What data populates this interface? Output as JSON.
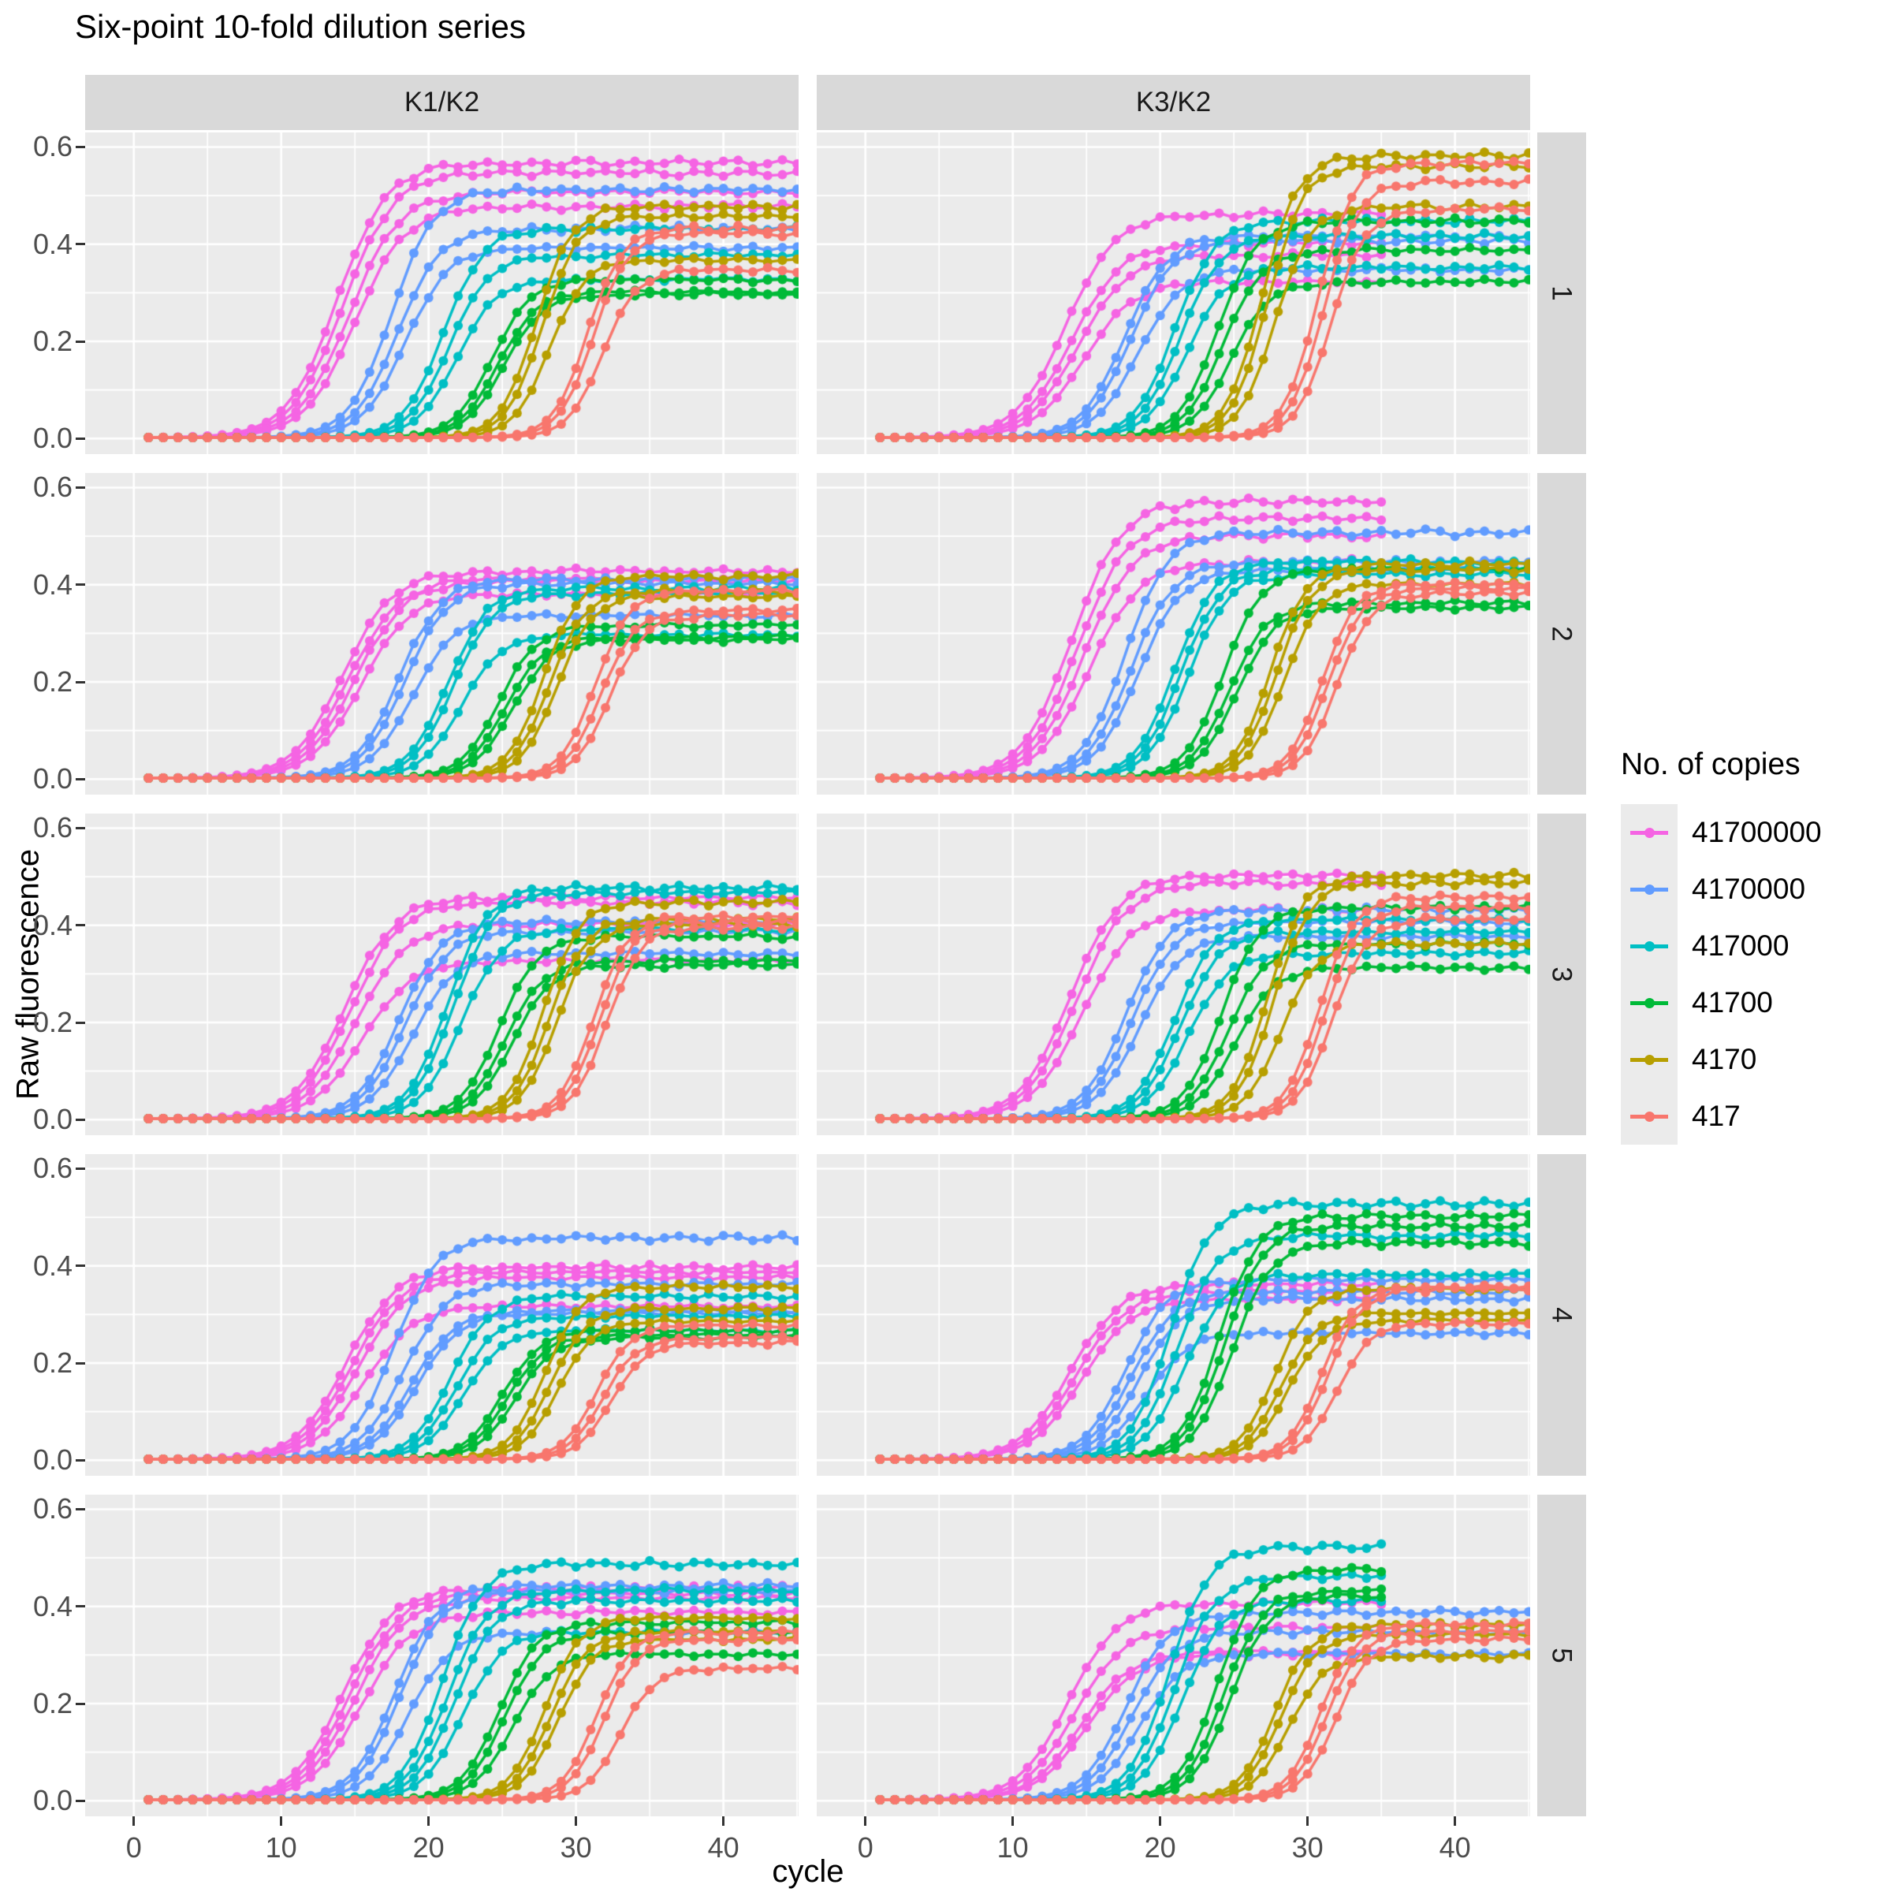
{
  "title": "Six-point 10-fold dilution series",
  "chart_data": {
    "type": "line",
    "title": "Six-point 10-fold dilution series",
    "xlabel": "cycle",
    "ylabel": "Raw fluorescence",
    "legend_title": "No. of copies",
    "legend_position": "right",
    "grid": "on",
    "background": "#EBEBEB",
    "strip_background": "#D9D9D9",
    "x_range": [
      1,
      45
    ],
    "x_ticks": [
      0,
      10,
      20,
      30,
      40
    ],
    "y_ticks": [
      0.0,
      0.2,
      0.4,
      0.6
    ],
    "x_minor": [
      5,
      15,
      25,
      35,
      45
    ],
    "y_minor": [
      0.1,
      0.3,
      0.5
    ],
    "xlim": [
      -3.3,
      45.1
    ],
    "ylim": [
      -0.032,
      0.63
    ],
    "facet_cols": [
      "K1/K2",
      "K3/K2"
    ],
    "facet_rows": [
      "1",
      "2",
      "3",
      "4",
      "5"
    ],
    "series_levels": [
      {
        "label": "41700000",
        "color": "#F564E3"
      },
      {
        "label": "4170000",
        "color": "#619CFF"
      },
      {
        "label": "417000",
        "color": "#00BFC4"
      },
      {
        "label": "41700",
        "color": "#00BA38"
      },
      {
        "label": "4170",
        "color": "#B79F00"
      },
      {
        "label": "417",
        "color": "#F8766D"
      }
    ],
    "slopes": {
      "41700000": 1.7,
      "4170000": 1.45,
      "417000": 1.35,
      "41700": 1.3,
      "4170": 1.2,
      "417": 1.15
    },
    "baseline": 0.002,
    "model": "Raw fluorescence(cycle) = 0.002 + plateau/(1+exp(-(cycle-midpoint)/slope)); one sigmoid per replicate, cycles 1..end (end=45 unless noted 35)",
    "panels": [
      {
        "row": "1",
        "col": "K1/K2",
        "curves": {
          "41700000": {
            "mid": [
              13.8,
              14.2,
              14.6,
              15.0
            ],
            "plateau": [
              0.565,
              0.545,
              0.505,
              0.475
            ],
            "end": 45
          },
          "4170000": {
            "mid": [
              17.5,
              17.9,
              18.4
            ],
            "plateau": [
              0.51,
              0.43,
              0.39
            ],
            "end": 45
          },
          "417000": {
            "mid": [
              21.0,
              21.4,
              21.9
            ],
            "plateau": [
              0.43,
              0.375,
              0.325
            ],
            "end": 45
          },
          "41700": {
            "mid": [
              24.3,
              24.7,
              25.1
            ],
            "plateau": [
              0.325,
              0.3,
              0.295
            ],
            "end": 45
          },
          "4170": {
            "mid": [
              27.3,
              27.7,
              28.2
            ],
            "plateau": [
              0.475,
              0.455,
              0.365
            ],
            "end": 45
          },
          "417": {
            "mid": [
              30.8,
              31.2,
              31.8
            ],
            "plateau": [
              0.43,
              0.42,
              0.345
            ],
            "end": 45
          }
        }
      },
      {
        "row": "1",
        "col": "K3/K2",
        "curves": {
          "41700000": {
            "mid": [
              13.6,
              14.0,
              14.4,
              14.8
            ],
            "plateau": [
              0.46,
              0.4,
              0.375,
              0.32
            ],
            "end": 35
          },
          "4170000": {
            "mid": [
              17.6,
              18.0,
              18.5
            ],
            "plateau": [
              0.415,
              0.405,
              0.345
            ],
            "end": 45
          },
          "417000": {
            "mid": [
              21.0,
              21.4,
              21.8
            ],
            "plateau": [
              0.445,
              0.415,
              0.35
            ],
            "end": 45
          },
          "41700": {
            "mid": [
              23.9,
              24.3,
              24.8
            ],
            "plateau": [
              0.445,
              0.385,
              0.32
            ],
            "end": 45
          },
          "4170": {
            "mid": [
              26.9,
              27.3,
              27.8
            ],
            "plateau": [
              0.58,
              0.56,
              0.475
            ],
            "end": 45
          },
          "417": {
            "mid": [
              30.7,
              31.1,
              31.6
            ],
            "plateau": [
              0.565,
              0.525,
              0.47
            ],
            "end": 45
          }
        }
      },
      {
        "row": "2",
        "col": "K1/K2",
        "curves": {
          "41700000": {
            "mid": [
              14.2,
              14.6,
              15.0,
              15.4
            ],
            "plateau": [
              0.425,
              0.41,
              0.405,
              0.38
            ],
            "end": 45
          },
          "4170000": {
            "mid": [
              18.0,
              18.4,
              18.9
            ],
            "plateau": [
              0.41,
              0.4,
              0.335
            ],
            "end": 45
          },
          "417000": {
            "mid": [
              21.3,
              21.7,
              22.2
            ],
            "plateau": [
              0.39,
              0.38,
              0.295
            ],
            "end": 45
          },
          "41700": {
            "mid": [
              24.8,
              25.2,
              25.7
            ],
            "plateau": [
              0.315,
              0.29,
              0.285
            ],
            "end": 45
          },
          "4170": {
            "mid": [
              27.8,
              28.2,
              28.7
            ],
            "plateau": [
              0.415,
              0.385,
              0.375
            ],
            "end": 45
          },
          "417": {
            "mid": [
              31.3,
              31.7,
              32.3
            ],
            "plateau": [
              0.385,
              0.345,
              0.335
            ],
            "end": 45
          }
        }
      },
      {
        "row": "2",
        "col": "K3/K2",
        "curves": {
          "41700000": {
            "mid": [
              14.0,
              14.4,
              14.8,
              15.2
            ],
            "plateau": [
              0.57,
              0.535,
              0.5,
              0.445
            ],
            "end": 35
          },
          "4170000": {
            "mid": [
              17.6,
              18.0,
              18.5
            ],
            "plateau": [
              0.505,
              0.445,
              0.43
            ],
            "end": 45
          },
          "417000": {
            "mid": [
              21.0,
              21.4,
              21.9
            ],
            "plateau": [
              0.445,
              0.43,
              0.42
            ],
            "end": 45
          },
          "41700": {
            "mid": [
              24.3,
              24.7,
              25.2
            ],
            "plateau": [
              0.43,
              0.36,
              0.35
            ],
            "end": 45
          },
          "4170": {
            "mid": [
              27.5,
              27.9,
              28.4
            ],
            "plateau": [
              0.44,
              0.43,
              0.4
            ],
            "end": 45
          },
          "417": {
            "mid": [
              31.0,
              31.4,
              32.0
            ],
            "plateau": [
              0.4,
              0.39,
              0.38
            ],
            "end": 45
          }
        }
      },
      {
        "row": "3",
        "col": "K1/K2",
        "curves": {
          "41700000": {
            "mid": [
              14.3,
              14.7,
              15.1,
              15.5
            ],
            "plateau": [
              0.455,
              0.445,
              0.4,
              0.325
            ],
            "end": 45
          },
          "4170000": {
            "mid": [
              18.0,
              18.4,
              18.9
            ],
            "plateau": [
              0.405,
              0.385,
              0.34
            ],
            "end": 45
          },
          "417000": {
            "mid": [
              21.3,
              21.7,
              22.2
            ],
            "plateau": [
              0.475,
              0.465,
              0.39
            ],
            "end": 45
          },
          "41700": {
            "mid": [
              24.8,
              25.2,
              25.7
            ],
            "plateau": [
              0.375,
              0.325,
              0.315
            ],
            "end": 45
          },
          "4170": {
            "mid": [
              27.8,
              28.2,
              28.7
            ],
            "plateau": [
              0.445,
              0.41,
              0.4
            ],
            "end": 45
          },
          "417": {
            "mid": [
              31.2,
              31.6,
              32.1
            ],
            "plateau": [
              0.415,
              0.405,
              0.395
            ],
            "end": 45
          }
        }
      },
      {
        "row": "3",
        "col": "K3/K2",
        "curves": {
          "41700000": {
            "mid": [
              13.9,
              14.3,
              14.7
            ],
            "plateau": [
              0.5,
              0.485,
              0.43
            ],
            "end": 35
          },
          "4170000": {
            "mid": [
              17.7,
              18.1,
              18.6
            ],
            "plateau": [
              0.43,
              0.405,
              0.375
            ],
            "end": 45
          },
          "417000": {
            "mid": [
              21.0,
              21.4,
              21.9
            ],
            "plateau": [
              0.41,
              0.385,
              0.34
            ],
            "end": 45
          },
          "41700": {
            "mid": [
              24.2,
              24.6,
              25.1
            ],
            "plateau": [
              0.435,
              0.36,
              0.31
            ],
            "end": 45
          },
          "4170": {
            "mid": [
              27.3,
              27.7,
              28.2
            ],
            "plateau": [
              0.5,
              0.485,
              0.36
            ],
            "end": 45
          },
          "417": {
            "mid": [
              30.8,
              31.2,
              31.7
            ],
            "plateau": [
              0.455,
              0.435,
              0.41
            ],
            "end": 45
          }
        }
      },
      {
        "row": "4",
        "col": "K1/K2",
        "curves": {
          "41700000": {
            "mid": [
              14.4,
              14.8,
              15.2,
              15.6
            ],
            "plateau": [
              0.395,
              0.385,
              0.375,
              0.315
            ],
            "end": 45
          },
          "4170000": {
            "mid": [
              17.6,
              18.3,
              18.8,
              19.2
            ],
            "plateau": [
              0.455,
              0.36,
              0.305,
              0.3
            ],
            "end": 45
          },
          "417000": {
            "mid": [
              21.5,
              21.9,
              22.4
            ],
            "plateau": [
              0.335,
              0.295,
              0.265
            ],
            "end": 45
          },
          "41700": {
            "mid": [
              25.0,
              25.4,
              25.9
            ],
            "plateau": [
              0.265,
              0.255,
              0.25
            ],
            "end": 45
          },
          "4170": {
            "mid": [
              27.9,
              28.3,
              28.8
            ],
            "plateau": [
              0.355,
              0.31,
              0.285
            ],
            "end": 45
          },
          "417": {
            "mid": [
              31.4,
              31.8,
              32.4
            ],
            "plateau": [
              0.275,
              0.25,
              0.24
            ],
            "end": 45
          }
        }
      },
      {
        "row": "4",
        "col": "K3/K2",
        "curves": {
          "41700000": {
            "mid": [
              13.9,
              14.3,
              14.7
            ],
            "plateau": [
              0.36,
              0.345,
              0.33
            ],
            "end": 35
          },
          "4170000": {
            "mid": [
              17.7,
              18.1,
              18.6,
              19.0
            ],
            "plateau": [
              0.37,
              0.345,
              0.33,
              0.26
            ],
            "end": 45
          },
          "417000": {
            "mid": [
              20.7,
              21.2,
              21.7
            ],
            "plateau": [
              0.525,
              0.46,
              0.38
            ],
            "end": 45
          },
          "41700": {
            "mid": [
              24.0,
              24.4,
              24.9
            ],
            "plateau": [
              0.5,
              0.48,
              0.445
            ],
            "end": 45
          },
          "4170": {
            "mid": [
              27.8,
              28.2,
              28.7
            ],
            "plateau": [
              0.35,
              0.3,
              0.285
            ],
            "end": 45
          },
          "417": {
            "mid": [
              31.0,
              31.4,
              32.0
            ],
            "plateau": [
              0.355,
              0.35,
              0.28
            ],
            "end": 45
          }
        }
      },
      {
        "row": "5",
        "col": "K1/K2",
        "curves": {
          "41700000": {
            "mid": [
              14.2,
              14.6,
              15.0,
              15.4
            ],
            "plateau": [
              0.435,
              0.425,
              0.415,
              0.385
            ],
            "end": 45
          },
          "4170000": {
            "mid": [
              17.7,
              18.1,
              18.6
            ],
            "plateau": [
              0.44,
              0.43,
              0.345
            ],
            "end": 45
          },
          "417000": {
            "mid": [
              20.9,
              21.3,
              21.8,
              22.3
            ],
            "plateau": [
              0.485,
              0.43,
              0.41,
              0.345
            ],
            "end": 45
          },
          "41700": {
            "mid": [
              24.8,
              25.2,
              25.7
            ],
            "plateau": [
              0.365,
              0.345,
              0.3
            ],
            "end": 45
          },
          "4170": {
            "mid": [
              27.9,
              28.3,
              28.8
            ],
            "plateau": [
              0.375,
              0.345,
              0.33
            ],
            "end": 45
          },
          "417": {
            "mid": [
              31.4,
              31.9,
              33.0
            ],
            "plateau": [
              0.345,
              0.33,
              0.27
            ],
            "end": 45
          }
        }
      },
      {
        "row": "5",
        "col": "K3/K2",
        "curves": {
          "41700000": {
            "mid": [
              13.8,
              14.2,
              14.6,
              15.0
            ],
            "plateau": [
              0.405,
              0.355,
              0.305,
              0.3
            ],
            "end": 35
          },
          "4170000": {
            "mid": [
              17.7,
              18.1,
              18.6
            ],
            "plateau": [
              0.385,
              0.345,
              0.3
            ],
            "end": 45
          },
          "417000": {
            "mid": [
              20.6,
              21.0,
              21.5
            ],
            "plateau": [
              0.52,
              0.46,
              0.41
            ],
            "end": 35
          },
          "41700": {
            "mid": [
              23.9,
              24.3,
              24.8
            ],
            "plateau": [
              0.475,
              0.43,
              0.42
            ],
            "end": 35
          },
          "4170": {
            "mid": [
              27.8,
              28.2,
              28.7
            ],
            "plateau": [
              0.36,
              0.34,
              0.295
            ],
            "end": 45
          },
          "417": {
            "mid": [
              30.9,
              31.3,
              31.9
            ],
            "plateau": [
              0.36,
              0.345,
              0.33
            ],
            "end": 45
          }
        }
      }
    ]
  }
}
